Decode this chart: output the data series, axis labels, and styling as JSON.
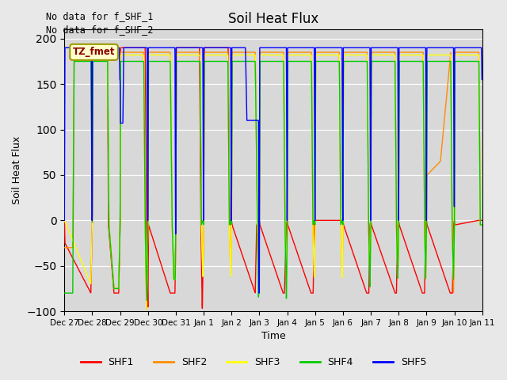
{
  "title": "Soil Heat Flux",
  "ylabel": "Soil Heat Flux",
  "xlabel": "Time",
  "text_no_data_1": "No data for f_SHF_1",
  "text_no_data_2": "No data for f_SHF_2",
  "tz_label": "TZ_fmet",
  "ylim": [
    -100,
    210
  ],
  "yticks": [
    -100,
    -50,
    0,
    50,
    100,
    150,
    200
  ],
  "colors": {
    "SHF1": "#ff0000",
    "SHF2": "#ff8c00",
    "SHF3": "#ffff00",
    "SHF4": "#00cc00",
    "SHF5": "#0000ff"
  },
  "background_color": "#e8e8e8",
  "plot_bg_color": "#d8d8d8",
  "xtick_labels": [
    "Dec 27",
    "Dec 28",
    "Dec 29",
    "Dec 30",
    "Dec 31",
    "Jan 1",
    "Jan 2",
    "Jan 3",
    "Jan 4",
    "Jan 5",
    "Jan 6",
    "Jan 7",
    "Jan 8",
    "Jan 9",
    "Jan 10",
    "Jan 11"
  ],
  "shf1_x": [
    0.0,
    0.02,
    0.95,
    1.0,
    1.02,
    1.55,
    1.58,
    1.78,
    1.82,
    1.95,
    2.0,
    2.02,
    2.9,
    2.95,
    3.0,
    3.02,
    3.8,
    3.85,
    3.92,
    3.97,
    4.0,
    4.02,
    4.85,
    4.9,
    4.95,
    5.0,
    5.02,
    5.88,
    5.93,
    5.97,
    6.0,
    6.02,
    6.85,
    6.9,
    6.97,
    7.0,
    7.02,
    7.85,
    7.9,
    7.97,
    8.0,
    8.02,
    8.85,
    8.93,
    8.97,
    9.0,
    9.02,
    9.88,
    9.93,
    9.97,
    10.0,
    10.02,
    10.85,
    10.93,
    10.97,
    11.0,
    11.02,
    11.87,
    11.92,
    11.97,
    12.0,
    12.02,
    12.85,
    12.93,
    12.97,
    13.0,
    13.02,
    13.85,
    13.93,
    13.97,
    14.0,
    14.02,
    14.85,
    14.9,
    15.0
  ],
  "shf1_y": [
    0,
    -25,
    -80,
    -5,
    190,
    190,
    -5,
    -80,
    -80,
    -80,
    -5,
    190,
    190,
    -5,
    -100,
    -5,
    -80,
    -80,
    -80,
    -80,
    -5,
    190,
    190,
    -5,
    -100,
    -5,
    190,
    190,
    -5,
    -5,
    0,
    -5,
    -80,
    -5,
    -5,
    0,
    -5,
    -80,
    -80,
    -5,
    0,
    -5,
    -80,
    -80,
    -5,
    0,
    0,
    0,
    0,
    0,
    0,
    -5,
    -80,
    -80,
    -5,
    0,
    -5,
    -80,
    -80,
    -5,
    0,
    -5,
    -80,
    -80,
    -5,
    0,
    -5,
    -80,
    -80,
    -5,
    0,
    -5,
    0,
    0,
    0
  ],
  "shf2_x": [
    0.0,
    0.02,
    0.3,
    0.35,
    0.95,
    1.0,
    1.02,
    1.55,
    1.6,
    1.78,
    1.82,
    1.95,
    2.0,
    2.02,
    2.85,
    2.9,
    2.95,
    3.0,
    3.02,
    3.8,
    3.87,
    3.93,
    3.98,
    4.0,
    4.02,
    4.87,
    4.92,
    4.97,
    5.0,
    5.02,
    5.87,
    5.92,
    5.97,
    6.0,
    6.02,
    6.85,
    6.93,
    6.97,
    7.0,
    7.02,
    7.87,
    7.92,
    7.97,
    8.0,
    8.02,
    8.87,
    8.92,
    8.97,
    9.0,
    9.02,
    9.87,
    9.92,
    9.97,
    10.0,
    10.02,
    10.87,
    10.92,
    10.97,
    11.0,
    11.02,
    11.87,
    11.92,
    11.97,
    12.0,
    12.02,
    12.88,
    12.93,
    12.97,
    13.0,
    13.02,
    13.5,
    13.87,
    13.92,
    13.97,
    14.0,
    14.02,
    14.88,
    14.93,
    15.0
  ],
  "shf2_y": [
    -30,
    -30,
    -30,
    185,
    185,
    -5,
    185,
    185,
    -5,
    -75,
    -75,
    -75,
    -5,
    185,
    185,
    -5,
    -100,
    -5,
    185,
    185,
    -5,
    -65,
    -65,
    -5,
    185,
    185,
    -5,
    -65,
    -5,
    185,
    185,
    -5,
    -65,
    -5,
    185,
    185,
    -5,
    -65,
    -5,
    185,
    185,
    -5,
    -65,
    -5,
    185,
    185,
    -5,
    -65,
    -5,
    185,
    185,
    -5,
    -65,
    -5,
    185,
    185,
    -5,
    -65,
    -5,
    185,
    185,
    -5,
    -65,
    -5,
    185,
    185,
    -5,
    -65,
    -5,
    50,
    65,
    185,
    -5,
    -80,
    -5,
    185,
    185,
    -5,
    -5
  ],
  "shf3_x": [
    0.0,
    0.95,
    1.0,
    1.02,
    1.55,
    1.6,
    1.78,
    1.83,
    1.95,
    2.0,
    2.02,
    2.85,
    2.9,
    2.95,
    3.0,
    3.02,
    3.8,
    3.87,
    3.93,
    3.98,
    4.0,
    4.02,
    4.87,
    4.92,
    4.97,
    5.0,
    5.02,
    5.87,
    5.92,
    5.97,
    6.0,
    6.02,
    6.85,
    6.93,
    6.97,
    7.0,
    7.02,
    7.87,
    7.92,
    7.97,
    8.0,
    8.02,
    8.87,
    8.92,
    8.97,
    9.0,
    9.02,
    9.87,
    9.92,
    9.97,
    10.0,
    10.02,
    10.87,
    10.92,
    10.97,
    11.0,
    11.02,
    11.87,
    11.92,
    11.97,
    12.0,
    12.02,
    12.88,
    12.93,
    12.97,
    13.0,
    13.02,
    13.87,
    13.92,
    13.97,
    14.0,
    14.02,
    14.88,
    14.93,
    15.0
  ],
  "shf3_y": [
    0,
    -70,
    -5,
    182,
    182,
    -5,
    -75,
    -75,
    -75,
    -5,
    182,
    182,
    -5,
    -100,
    -5,
    182,
    182,
    -5,
    -65,
    -65,
    -5,
    182,
    182,
    -5,
    -65,
    -5,
    182,
    182,
    -5,
    -65,
    -5,
    182,
    182,
    -5,
    -65,
    -5,
    182,
    182,
    -5,
    -65,
    -5,
    182,
    182,
    -5,
    -65,
    -5,
    182,
    182,
    -5,
    -65,
    -5,
    182,
    182,
    -5,
    -65,
    -5,
    182,
    182,
    -5,
    -65,
    -5,
    182,
    182,
    -5,
    -65,
    -5,
    182,
    182,
    -5,
    -65,
    -5,
    182,
    182,
    -5,
    -5
  ],
  "shf4_x": [
    0.0,
    0.02,
    0.3,
    0.35,
    0.95,
    1.0,
    1.02,
    1.55,
    1.6,
    1.78,
    1.83,
    1.95,
    2.0,
    2.02,
    2.85,
    2.9,
    2.95,
    3.0,
    3.02,
    3.8,
    3.87,
    3.93,
    3.98,
    4.0,
    4.02,
    4.87,
    4.92,
    4.97,
    5.0,
    5.02,
    5.87,
    5.92,
    5.97,
    6.0,
    6.02,
    6.85,
    6.93,
    6.97,
    7.0,
    7.02,
    7.87,
    7.92,
    7.97,
    8.0,
    8.02,
    8.87,
    8.92,
    8.97,
    9.0,
    9.02,
    9.87,
    9.92,
    9.97,
    10.0,
    10.02,
    10.87,
    10.92,
    10.97,
    11.0,
    11.02,
    11.87,
    11.92,
    11.97,
    12.0,
    12.02,
    12.88,
    12.93,
    12.97,
    13.0,
    13.02,
    13.87,
    13.92,
    13.97,
    14.0,
    14.02,
    14.88,
    14.93,
    15.0
  ],
  "shf4_y": [
    -80,
    -80,
    -80,
    175,
    175,
    -5,
    175,
    175,
    -5,
    -75,
    -75,
    -75,
    -5,
    175,
    175,
    -5,
    -90,
    -5,
    175,
    175,
    -5,
    -65,
    -65,
    -5,
    175,
    175,
    -5,
    0,
    -5,
    175,
    175,
    -5,
    0,
    -5,
    175,
    175,
    -5,
    -90,
    -5,
    175,
    175,
    -5,
    -90,
    -5,
    175,
    175,
    -5,
    0,
    -5,
    175,
    175,
    -5,
    0,
    -5,
    175,
    175,
    -5,
    -75,
    -5,
    175,
    175,
    -5,
    -65,
    -5,
    175,
    175,
    -5,
    -65,
    -5,
    175,
    175,
    -5,
    -65,
    -5,
    175,
    175,
    -5,
    -5
  ],
  "shf5_x": [
    0.0,
    0.02,
    0.97,
    0.99,
    1.0,
    1.01,
    1.97,
    1.99,
    2.0,
    2.01,
    2.1,
    2.13,
    2.97,
    2.99,
    3.0,
    3.01,
    3.97,
    3.99,
    4.0,
    4.01,
    4.97,
    4.99,
    5.0,
    5.01,
    5.97,
    5.99,
    6.0,
    6.01,
    6.5,
    6.55,
    6.97,
    6.99,
    7.0,
    7.01,
    7.97,
    7.99,
    8.0,
    8.01,
    8.97,
    8.99,
    9.0,
    9.01,
    9.97,
    9.99,
    10.0,
    10.01,
    10.97,
    10.99,
    11.0,
    11.01,
    11.97,
    11.99,
    12.0,
    12.01,
    12.97,
    12.99,
    13.0,
    13.01,
    13.97,
    13.99,
    14.0,
    14.01,
    14.97,
    14.99,
    15.0
  ],
  "shf5_y": [
    0,
    190,
    190,
    0,
    0,
    190,
    190,
    155,
    155,
    107,
    107,
    190,
    190,
    0,
    0,
    190,
    190,
    -15,
    -15,
    190,
    190,
    0,
    0,
    190,
    190,
    0,
    0,
    190,
    190,
    110,
    110,
    -80,
    -80,
    190,
    190,
    0,
    0,
    190,
    190,
    0,
    0,
    190,
    190,
    0,
    0,
    190,
    190,
    0,
    0,
    190,
    190,
    0,
    0,
    190,
    190,
    0,
    0,
    190,
    190,
    15,
    15,
    190,
    190,
    155,
    155
  ]
}
